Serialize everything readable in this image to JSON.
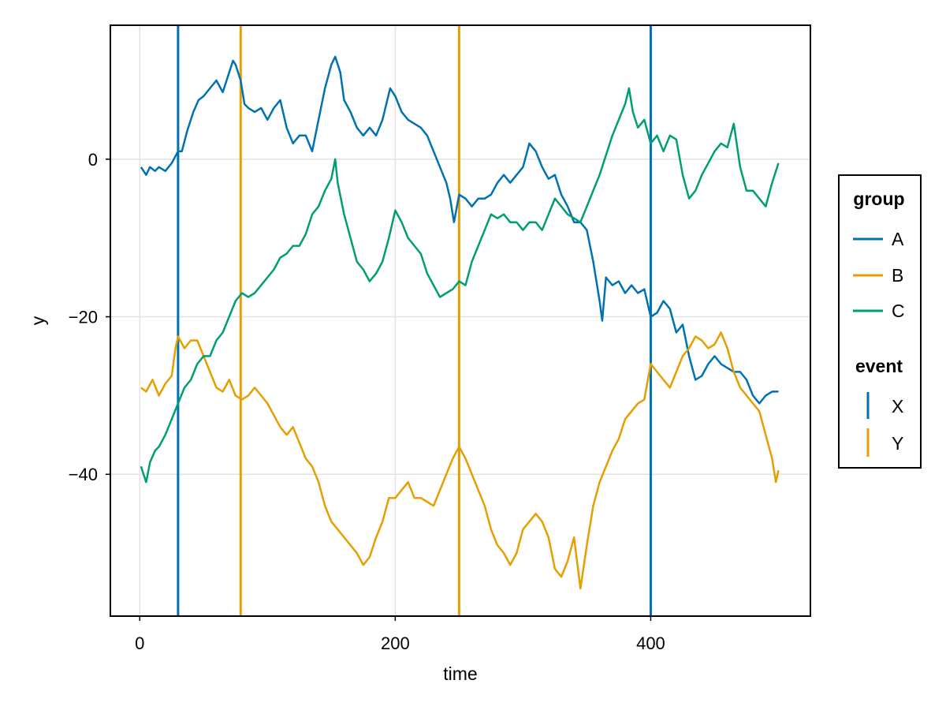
{
  "chart_data": {
    "type": "line",
    "title": "",
    "xlabel": "time",
    "ylabel": "y",
    "xlim": [
      -23,
      525
    ],
    "ylim": [
      -58,
      17
    ],
    "x_ticks": [
      0,
      200,
      400
    ],
    "y_ticks": [
      0,
      -20,
      -40
    ],
    "x_tick_labels": [
      "0",
      "200",
      "400"
    ],
    "y_tick_labels": [
      "0",
      "−20",
      "−40"
    ],
    "grid": true,
    "legend_position": "right",
    "series": [
      {
        "name": "A",
        "color": "#0072b2",
        "points": [
          [
            1,
            -1
          ],
          [
            5,
            -2
          ],
          [
            8,
            -1
          ],
          [
            12,
            -1.5
          ],
          [
            15,
            -1
          ],
          [
            20,
            -1.5
          ],
          [
            25,
            -0.5
          ],
          [
            30,
            1
          ],
          [
            33,
            1
          ],
          [
            37,
            3.5
          ],
          [
            42,
            6
          ],
          [
            46,
            7.5
          ],
          [
            50,
            8
          ],
          [
            55,
            9
          ],
          [
            60,
            10
          ],
          [
            65,
            8.5
          ],
          [
            70,
            11
          ],
          [
            73,
            12.5
          ],
          [
            75,
            12
          ],
          [
            79,
            10
          ],
          [
            82,
            7
          ],
          [
            85,
            6.5
          ],
          [
            90,
            6
          ],
          [
            95,
            6.5
          ],
          [
            100,
            5
          ],
          [
            105,
            6.5
          ],
          [
            110,
            7.5
          ],
          [
            115,
            4
          ],
          [
            120,
            2
          ],
          [
            125,
            3
          ],
          [
            130,
            3
          ],
          [
            135,
            1
          ],
          [
            140,
            5
          ],
          [
            145,
            9
          ],
          [
            150,
            12
          ],
          [
            153,
            13
          ],
          [
            157,
            11
          ],
          [
            160,
            7.5
          ],
          [
            165,
            6
          ],
          [
            170,
            4
          ],
          [
            175,
            3
          ],
          [
            180,
            4
          ],
          [
            185,
            3
          ],
          [
            190,
            5
          ],
          [
            196,
            9
          ],
          [
            200,
            8
          ],
          [
            205,
            6
          ],
          [
            210,
            5
          ],
          [
            215,
            4.5
          ],
          [
            220,
            4
          ],
          [
            225,
            3
          ],
          [
            230,
            1
          ],
          [
            235,
            -1
          ],
          [
            240,
            -3
          ],
          [
            243,
            -5
          ],
          [
            246,
            -8
          ],
          [
            250,
            -4.5
          ],
          [
            255,
            -5
          ],
          [
            260,
            -6
          ],
          [
            265,
            -5
          ],
          [
            270,
            -5
          ],
          [
            275,
            -4.5
          ],
          [
            280,
            -3
          ],
          [
            285,
            -2
          ],
          [
            290,
            -3
          ],
          [
            295,
            -2
          ],
          [
            300,
            -1
          ],
          [
            305,
            2
          ],
          [
            310,
            1
          ],
          [
            315,
            -1
          ],
          [
            320,
            -2.5
          ],
          [
            325,
            -2
          ],
          [
            330,
            -4.5
          ],
          [
            335,
            -6
          ],
          [
            340,
            -8
          ],
          [
            345,
            -8
          ],
          [
            350,
            -9
          ],
          [
            355,
            -13
          ],
          [
            360,
            -18
          ],
          [
            362,
            -20.5
          ],
          [
            365,
            -15
          ],
          [
            370,
            -16
          ],
          [
            375,
            -15.5
          ],
          [
            380,
            -17
          ],
          [
            385,
            -16
          ],
          [
            390,
            -17
          ],
          [
            395,
            -16.5
          ],
          [
            400,
            -20
          ],
          [
            405,
            -19.5
          ],
          [
            410,
            -18
          ],
          [
            415,
            -19
          ],
          [
            420,
            -22
          ],
          [
            425,
            -21
          ],
          [
            430,
            -25
          ],
          [
            435,
            -28
          ],
          [
            440,
            -27.5
          ],
          [
            445,
            -26
          ],
          [
            450,
            -25
          ],
          [
            455,
            -26
          ],
          [
            460,
            -26.5
          ],
          [
            465,
            -27
          ],
          [
            470,
            -27
          ],
          [
            475,
            -28
          ],
          [
            480,
            -30
          ],
          [
            485,
            -31
          ],
          [
            490,
            -30
          ],
          [
            495,
            -29.5
          ],
          [
            500,
            -29.5
          ]
        ]
      },
      {
        "name": "B",
        "color": "#e69f00",
        "points": [
          [
            1,
            -29
          ],
          [
            5,
            -29.5
          ],
          [
            10,
            -28
          ],
          [
            15,
            -30
          ],
          [
            20,
            -28.5
          ],
          [
            25,
            -27.5
          ],
          [
            28,
            -24
          ],
          [
            30,
            -22.5
          ],
          [
            35,
            -24
          ],
          [
            40,
            -23
          ],
          [
            45,
            -23
          ],
          [
            50,
            -25
          ],
          [
            55,
            -27
          ],
          [
            60,
            -29
          ],
          [
            65,
            -29.5
          ],
          [
            70,
            -28
          ],
          [
            75,
            -30
          ],
          [
            80,
            -30.5
          ],
          [
            85,
            -30
          ],
          [
            90,
            -29
          ],
          [
            95,
            -30
          ],
          [
            100,
            -31
          ],
          [
            105,
            -32.5
          ],
          [
            110,
            -34
          ],
          [
            115,
            -35
          ],
          [
            120,
            -34
          ],
          [
            125,
            -36
          ],
          [
            130,
            -38
          ],
          [
            135,
            -39
          ],
          [
            140,
            -41
          ],
          [
            145,
            -44
          ],
          [
            150,
            -46
          ],
          [
            155,
            -47
          ],
          [
            160,
            -48
          ],
          [
            165,
            -49
          ],
          [
            170,
            -50
          ],
          [
            175,
            -51.5
          ],
          [
            180,
            -50.5
          ],
          [
            185,
            -48
          ],
          [
            190,
            -46
          ],
          [
            195,
            -43
          ],
          [
            200,
            -43
          ],
          [
            205,
            -42
          ],
          [
            210,
            -41
          ],
          [
            215,
            -43
          ],
          [
            220,
            -43
          ],
          [
            225,
            -43.5
          ],
          [
            230,
            -44
          ],
          [
            235,
            -42
          ],
          [
            240,
            -40
          ],
          [
            245,
            -38
          ],
          [
            250,
            -36.5
          ],
          [
            255,
            -38
          ],
          [
            260,
            -40
          ],
          [
            265,
            -42
          ],
          [
            270,
            -44
          ],
          [
            275,
            -47
          ],
          [
            280,
            -49
          ],
          [
            285,
            -50
          ],
          [
            290,
            -51.5
          ],
          [
            295,
            -50
          ],
          [
            300,
            -47
          ],
          [
            305,
            -46
          ],
          [
            310,
            -45
          ],
          [
            315,
            -46
          ],
          [
            320,
            -48
          ],
          [
            325,
            -52
          ],
          [
            330,
            -53
          ],
          [
            335,
            -51
          ],
          [
            340,
            -48
          ],
          [
            345,
            -54.5
          ],
          [
            350,
            -49
          ],
          [
            355,
            -44
          ],
          [
            360,
            -41
          ],
          [
            365,
            -39
          ],
          [
            370,
            -37
          ],
          [
            375,
            -35.5
          ],
          [
            380,
            -33
          ],
          [
            385,
            -32
          ],
          [
            390,
            -31
          ],
          [
            395,
            -30.5
          ],
          [
            400,
            -26
          ],
          [
            405,
            -27
          ],
          [
            410,
            -28
          ],
          [
            415,
            -29
          ],
          [
            420,
            -27
          ],
          [
            425,
            -25
          ],
          [
            430,
            -24
          ],
          [
            435,
            -22.5
          ],
          [
            440,
            -23
          ],
          [
            445,
            -24
          ],
          [
            450,
            -23.5
          ],
          [
            455,
            -22
          ],
          [
            460,
            -24
          ],
          [
            465,
            -27
          ],
          [
            470,
            -29
          ],
          [
            475,
            -30
          ],
          [
            480,
            -31
          ],
          [
            485,
            -32
          ],
          [
            490,
            -35
          ],
          [
            495,
            -38
          ],
          [
            498,
            -41
          ],
          [
            500,
            -39.5
          ]
        ]
      },
      {
        "name": "C",
        "color": "#009e73",
        "points": [
          [
            1,
            -39
          ],
          [
            3,
            -40
          ],
          [
            5,
            -41
          ],
          [
            8,
            -38.5
          ],
          [
            12,
            -37
          ],
          [
            15,
            -36.5
          ],
          [
            20,
            -35
          ],
          [
            25,
            -33
          ],
          [
            30,
            -31
          ],
          [
            35,
            -29
          ],
          [
            40,
            -28
          ],
          [
            45,
            -26
          ],
          [
            50,
            -25
          ],
          [
            55,
            -25
          ],
          [
            60,
            -23
          ],
          [
            65,
            -22
          ],
          [
            70,
            -20
          ],
          [
            75,
            -18
          ],
          [
            80,
            -17
          ],
          [
            85,
            -17.5
          ],
          [
            90,
            -17
          ],
          [
            95,
            -16
          ],
          [
            100,
            -15
          ],
          [
            105,
            -14
          ],
          [
            110,
            -12.5
          ],
          [
            115,
            -12
          ],
          [
            120,
            -11
          ],
          [
            125,
            -11
          ],
          [
            130,
            -9.5
          ],
          [
            135,
            -7
          ],
          [
            140,
            -6
          ],
          [
            145,
            -4
          ],
          [
            150,
            -2.5
          ],
          [
            153,
            0
          ],
          [
            155,
            -3
          ],
          [
            160,
            -7
          ],
          [
            165,
            -10
          ],
          [
            170,
            -13
          ],
          [
            175,
            -14
          ],
          [
            180,
            -15.5
          ],
          [
            185,
            -14.5
          ],
          [
            190,
            -13
          ],
          [
            195,
            -10
          ],
          [
            200,
            -6.5
          ],
          [
            205,
            -8
          ],
          [
            210,
            -10
          ],
          [
            215,
            -11
          ],
          [
            220,
            -12
          ],
          [
            225,
            -14.5
          ],
          [
            230,
            -16
          ],
          [
            235,
            -17.5
          ],
          [
            240,
            -17
          ],
          [
            245,
            -16.5
          ],
          [
            250,
            -15.5
          ],
          [
            255,
            -16
          ],
          [
            260,
            -13
          ],
          [
            265,
            -11
          ],
          [
            270,
            -9
          ],
          [
            275,
            -7
          ],
          [
            280,
            -7.5
          ],
          [
            285,
            -7
          ],
          [
            290,
            -8
          ],
          [
            295,
            -8
          ],
          [
            300,
            -9
          ],
          [
            305,
            -8
          ],
          [
            310,
            -8
          ],
          [
            315,
            -9
          ],
          [
            320,
            -7
          ],
          [
            325,
            -5
          ],
          [
            330,
            -6
          ],
          [
            335,
            -7
          ],
          [
            340,
            -7.5
          ],
          [
            345,
            -8
          ],
          [
            350,
            -6
          ],
          [
            355,
            -4
          ],
          [
            360,
            -2
          ],
          [
            365,
            0.5
          ],
          [
            370,
            3
          ],
          [
            375,
            5
          ],
          [
            380,
            7
          ],
          [
            383,
            9
          ],
          [
            386,
            6
          ],
          [
            390,
            4
          ],
          [
            395,
            5
          ],
          [
            400,
            2
          ],
          [
            405,
            3
          ],
          [
            410,
            1
          ],
          [
            415,
            3
          ],
          [
            420,
            2.5
          ],
          [
            425,
            -2
          ],
          [
            430,
            -5
          ],
          [
            435,
            -4
          ],
          [
            440,
            -2
          ],
          [
            445,
            -0.5
          ],
          [
            450,
            1
          ],
          [
            455,
            2
          ],
          [
            460,
            1.5
          ],
          [
            465,
            4.5
          ],
          [
            470,
            -1
          ],
          [
            475,
            -4
          ],
          [
            480,
            -4
          ],
          [
            485,
            -5
          ],
          [
            490,
            -6
          ],
          [
            495,
            -3
          ],
          [
            500,
            -0.5
          ]
        ]
      }
    ],
    "events": [
      {
        "name": "X",
        "color": "#0072b2",
        "x": [
          30,
          400
        ]
      },
      {
        "name": "Y",
        "color": "#e69f00",
        "x": [
          79,
          250
        ]
      }
    ],
    "legend": {
      "group_title": "group",
      "group_items": [
        "A",
        "B",
        "C"
      ],
      "event_title": "event",
      "event_items": [
        "X",
        "Y"
      ]
    }
  }
}
